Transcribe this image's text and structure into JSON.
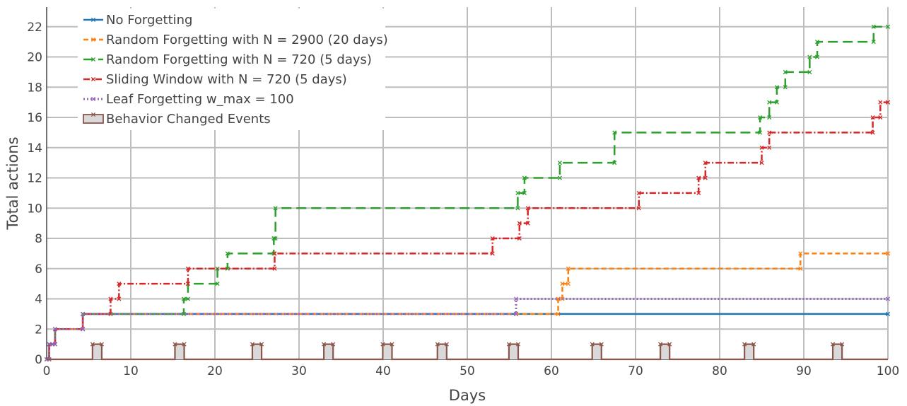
{
  "chart_data": {
    "type": "line",
    "title": "",
    "xlabel": "Days",
    "ylabel": "Total actions",
    "xlim": [
      0,
      100
    ],
    "ylim": [
      0,
      23.3
    ],
    "x_ticks": [
      0,
      10,
      20,
      30,
      40,
      50,
      60,
      70,
      80,
      90,
      100
    ],
    "y_ticks": [
      0,
      2,
      4,
      6,
      8,
      10,
      12,
      14,
      16,
      18,
      20,
      22
    ],
    "grid": true,
    "legend_position": "top-left",
    "series": [
      {
        "name": "No Forgetting",
        "color": "#1f77b4",
        "dash": "solid",
        "x": [
          0.0,
          0.3,
          0.7,
          1.0,
          4.3,
          55.8,
          100
        ],
        "y": [
          0,
          1,
          1,
          2,
          3,
          3,
          3
        ]
      },
      {
        "name": "Random Forgetting with N = 2900 (20 days)",
        "color": "#ff7f0e",
        "dash": "dashed",
        "x": [
          0.0,
          0.3,
          0.7,
          1.0,
          4.3,
          55.8,
          60.8,
          61.3,
          62.0,
          89.6,
          100
        ],
        "y": [
          0,
          1,
          1,
          2,
          3,
          3,
          4,
          5,
          6,
          7,
          7
        ]
      },
      {
        "name": "Random Forgetting with N = 720 (5 days)",
        "color": "#2ca02c",
        "dash": "longdash",
        "x": [
          0.0,
          0.3,
          0.7,
          1.0,
          4.3,
          16.3,
          16.8,
          20.3,
          21.5,
          27.0,
          27.2,
          56.0,
          56.8,
          61.0,
          67.5,
          84.8,
          85.9,
          86.8,
          87.8,
          90.7,
          91.6,
          98.3,
          100
        ],
        "y": [
          0,
          1,
          1,
          2,
          3,
          4,
          5,
          6,
          7,
          8,
          10,
          11,
          12,
          13,
          15,
          16,
          17,
          18,
          19,
          20,
          21,
          22,
          22
        ]
      },
      {
        "name": "Sliding Window with N = 720 (5 days)",
        "color": "#d62728",
        "dash": "dashdot",
        "x": [
          0.0,
          0.3,
          0.7,
          1.0,
          4.3,
          7.6,
          8.6,
          16.8,
          27.1,
          53.0,
          56.2,
          57.2,
          70.4,
          77.5,
          78.3,
          85.0,
          85.9,
          98.2,
          99.1,
          100
        ],
        "y": [
          0,
          1,
          1,
          2,
          3,
          4,
          5,
          6,
          7,
          8,
          9,
          10,
          11,
          12,
          13,
          14,
          15,
          16,
          17,
          17
        ]
      },
      {
        "name": "Leaf Forgetting w_max = 100",
        "color": "#9467bd",
        "dash": "dotted",
        "x": [
          0.0,
          0.3,
          0.7,
          1.0,
          4.3,
          55.8,
          100
        ],
        "y": [
          0,
          1,
          1,
          2,
          3,
          4,
          4
        ]
      },
      {
        "name": "Behavior Changed Events",
        "color": "#8c564b",
        "dash": "solid",
        "event_days": [
          6.0,
          15.8,
          25.0,
          33.5,
          40.5,
          47.0,
          55.5,
          65.4,
          73.5,
          83.5,
          94.0
        ],
        "event_height": 1
      }
    ]
  }
}
